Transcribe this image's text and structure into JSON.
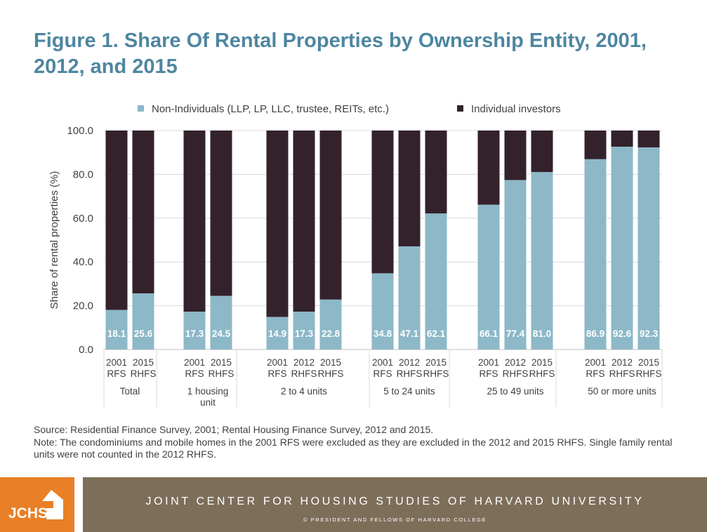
{
  "page": {
    "title": "Figure 1. Share Of Rental Properties by Ownership Entity, 2001, 2012, and 2015",
    "source": "Source: Residential Finance Survey, 2001; Rental Housing Finance Survey, 2012 and 2015.",
    "note": "Note: The condominiums and mobile homes in the 2001 RFS were excluded as they are excluded in the 2012 and 2015 RHFS. Single family rental units were not counted in the 2012 RHFS."
  },
  "footer": {
    "logo_text": "JCHS",
    "org_name": "JOINT CENTER FOR HOUSING STUDIES OF HARVARD UNIVERSITY",
    "copyright": "© PRESIDENT AND FELLOWS OF HARVARD COLLEGE"
  },
  "colors": {
    "non_individuals": "#8db8c8",
    "individual_investors": "#33222c",
    "title": "#4e86a0",
    "logo": "#e97f26",
    "footer_band": "#7d6e5a"
  },
  "chart_data": {
    "type": "bar",
    "stacked": true,
    "title": "",
    "ylabel": "Share of rental properties (%)",
    "ylim": [
      0,
      100
    ],
    "yticks": [
      "0.0",
      "20.0",
      "40.0",
      "60.0",
      "80.0",
      "100.0"
    ],
    "grid": true,
    "legend_position": "top",
    "series": [
      {
        "name": "Non-Individuals (LLP, LP, LLC, trustee, REITs, etc.)",
        "key": "non_individuals"
      },
      {
        "name": "Individual investors",
        "key": "individual_investors"
      }
    ],
    "groups": [
      {
        "label": [
          "Total"
        ],
        "bars": [
          {
            "year": "2001",
            "survey": "RFS",
            "value": 18.1,
            "label": "18.1"
          },
          {
            "year": "2015",
            "survey": "RHFS",
            "value": 25.6,
            "label": "25.6"
          }
        ]
      },
      {
        "label": [
          "1 housing",
          "unit"
        ],
        "bars": [
          {
            "year": "2001",
            "survey": "RFS",
            "value": 17.3,
            "label": "17.3"
          },
          {
            "year": "2015",
            "survey": "RHFS",
            "value": 24.5,
            "label": "24.5"
          }
        ]
      },
      {
        "label": [
          "2 to 4 units"
        ],
        "bars": [
          {
            "year": "2001",
            "survey": "RFS",
            "value": 14.9,
            "label": "14.9"
          },
          {
            "year": "2012",
            "survey": "RHFS",
            "value": 17.3,
            "label": "17.3"
          },
          {
            "year": "2015",
            "survey": "RHFS",
            "value": 22.8,
            "label": "22.8"
          }
        ]
      },
      {
        "label": [
          "5 to 24 units"
        ],
        "bars": [
          {
            "year": "2001",
            "survey": "RFS",
            "value": 34.8,
            "label": "34.8"
          },
          {
            "year": "2012",
            "survey": "RHFS",
            "value": 47.1,
            "label": "47.1"
          },
          {
            "year": "2015",
            "survey": "RHFS",
            "value": 62.1,
            "label": "62.1"
          }
        ]
      },
      {
        "label": [
          "25 to 49 units"
        ],
        "bars": [
          {
            "year": "2001",
            "survey": "RFS",
            "value": 66.1,
            "label": "66.1"
          },
          {
            "year": "2012",
            "survey": "RHFS",
            "value": 77.4,
            "label": "77.4"
          },
          {
            "year": "2015",
            "survey": "RHFS",
            "value": 81.0,
            "label": "81.0"
          }
        ]
      },
      {
        "label": [
          "50 or more units"
        ],
        "bars": [
          {
            "year": "2001",
            "survey": "RFS",
            "value": 86.9,
            "label": "86.9"
          },
          {
            "year": "2012",
            "survey": "RHFS",
            "value": 92.6,
            "label": "92.6"
          },
          {
            "year": "2015",
            "survey": "RHFS",
            "value": 92.3,
            "label": "92.3"
          }
        ]
      }
    ]
  }
}
